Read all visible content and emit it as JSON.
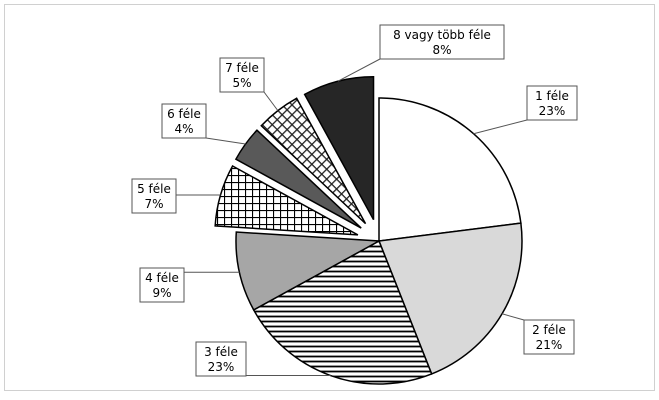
{
  "chart_data": {
    "type": "pie",
    "title": "",
    "slices": [
      {
        "label": "1 féle",
        "value": 23,
        "value_label": "23%",
        "fill": "white",
        "exploded": false
      },
      {
        "label": "2 féle",
        "value": 21,
        "value_label": "21%",
        "fill": "#d9d9d9",
        "exploded": false
      },
      {
        "label": "3 féle",
        "value": 23,
        "value_label": "23%",
        "fill": "horizontal-lines",
        "exploded": false
      },
      {
        "label": "4 féle",
        "value": 9,
        "value_label": "9%",
        "fill": "#a6a6a6",
        "exploded": false
      },
      {
        "label": "5 féle",
        "value": 7,
        "value_label": "7%",
        "fill": "grid-pattern",
        "exploded": true
      },
      {
        "label": "6 féle",
        "value": 4,
        "value_label": "4%",
        "fill": "#595959",
        "exploded": true
      },
      {
        "label": "7 féle",
        "value": 5,
        "value_label": "5%",
        "fill": "diagonal-crosshatch",
        "exploded": true
      },
      {
        "label": "8 vagy több féle",
        "value": 8,
        "value_label": "8%",
        "fill": "#262626",
        "exploded": true
      }
    ],
    "start_angle_deg": 0,
    "direction": "clockwise",
    "border_color": "#000000",
    "legend": "none",
    "data_labels": "callout-boxes-with-leader-lines"
  }
}
